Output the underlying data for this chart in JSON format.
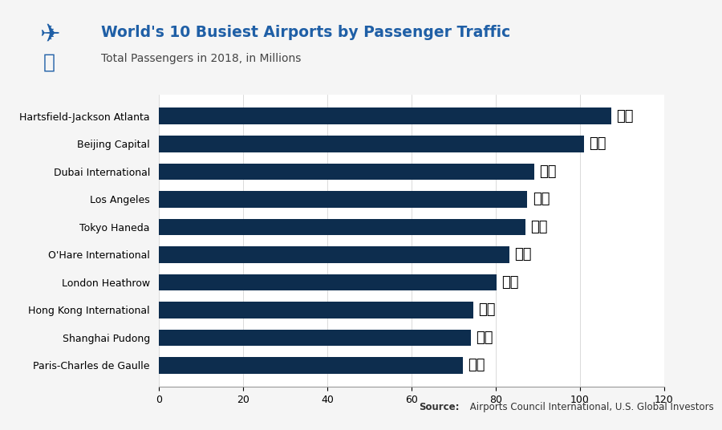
{
  "airports": [
    "Paris-Charles de Gaulle",
    "Shanghai Pudong",
    "Hong Kong International",
    "London Heathrow",
    "O'Hare International",
    "Tokyo Haneda",
    "Los Angeles",
    "Dubai International",
    "Beijing Capital",
    "Hartsfield-Jackson Atlanta"
  ],
  "values": [
    72.2,
    74.0,
    74.7,
    80.1,
    83.2,
    87.1,
    87.5,
    89.1,
    100.9,
    107.4
  ],
  "bar_color": "#0d2d4e",
  "title": "World's 10 Busiest Airports by Passenger Traffic",
  "subtitle": "Total Passengers in 2018, in Millions",
  "source_text": "Source: Airports Council International, U.S. Global Investors",
  "xlim": [
    0,
    120
  ],
  "xticks": [
    0,
    20,
    40,
    60,
    80,
    100,
    120
  ],
  "background_color": "#f5f5f5",
  "plot_background": "#ffffff",
  "title_color": "#1f5fa6",
  "subtitle_color": "#444444",
  "bar_height": 0.6,
  "flag_emojis": [
    "🇫🇷",
    "🇨🇳",
    "🇭🇰",
    "🇬🇧",
    "🇺🇸",
    "🇯🇵",
    "🇺🇸",
    "🇦🇪",
    "🇨🇳",
    "🇺🇸"
  ]
}
